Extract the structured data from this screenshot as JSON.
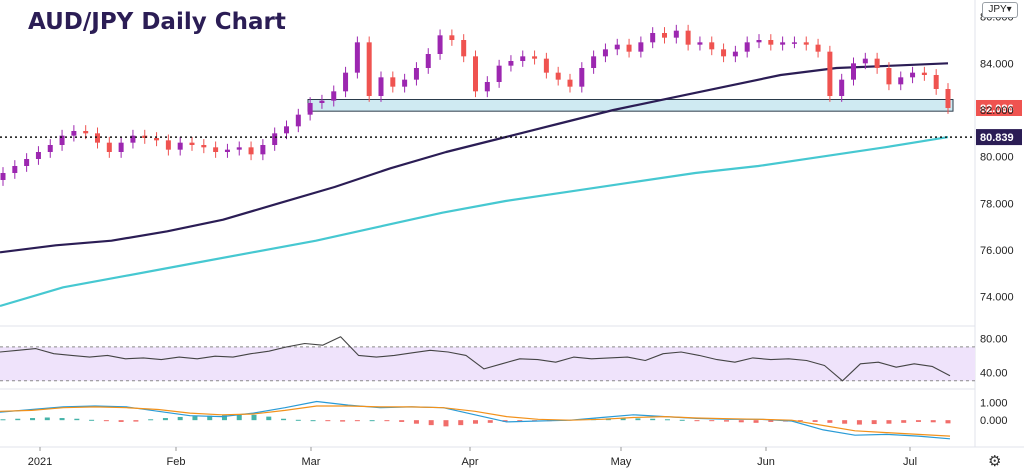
{
  "title": "AUD/JPY Daily Chart",
  "currency_selector": "JPY",
  "settings_icon": "gear-icon",
  "colors": {
    "up": "#9c27b0",
    "down": "#ef5350",
    "ma_long": "#2b1d55",
    "ma_200": "#46c8d1",
    "support_zone": "#bfe3ee",
    "rsi_band": "#efe3fb",
    "macd": "#2a9bd6",
    "signal": "#f2911b",
    "hist_up": "#26a69a",
    "hist_down": "#ef5350"
  },
  "chart_data": [
    {
      "type": "candlestick",
      "title": "AUD/JPY Daily Chart",
      "x_labels": [
        "2021",
        "Feb",
        "Mar",
        "Apr",
        "May",
        "Jun",
        "Jul"
      ],
      "ylim": [
        73,
        86.5
      ],
      "y_ticks": [
        "86.000",
        "84.000",
        "82.000",
        "80.000",
        "78.000",
        "76.000",
        "74.000"
      ],
      "y_tick_values": [
        86,
        84,
        82,
        80,
        78,
        76,
        74
      ],
      "price_labels": [
        {
          "text": "82.086",
          "value": 82.086
        },
        {
          "text": "80.839",
          "value": 80.839
        }
      ],
      "closes": [
        79.3,
        79.6,
        79.9,
        80.2,
        80.5,
        80.9,
        81.1,
        81.0,
        80.6,
        80.2,
        80.6,
        80.9,
        80.8,
        80.7,
        80.3,
        80.6,
        80.5,
        80.4,
        80.2,
        80.3,
        80.4,
        80.1,
        80.5,
        81.0,
        81.3,
        81.8,
        82.3,
        82.4,
        82.8,
        83.6,
        84.9,
        82.6,
        83.4,
        83.0,
        83.3,
        83.8,
        84.4,
        85.2,
        85.0,
        84.3,
        82.8,
        83.2,
        83.9,
        84.1,
        84.3,
        84.2,
        83.6,
        83.3,
        83.0,
        83.8,
        84.3,
        84.6,
        84.8,
        84.5,
        84.9,
        85.3,
        85.1,
        85.4,
        84.8,
        84.9,
        84.6,
        84.3,
        84.5,
        84.9,
        85.0,
        84.8,
        84.9,
        84.9,
        84.8,
        84.5,
        82.6,
        83.3,
        84.0,
        84.2,
        83.8,
        83.1,
        83.4,
        83.6,
        83.5,
        82.9,
        82.086
      ],
      "support_zone": [
        81.95,
        82.45
      ],
      "dotted_level": 80.839,
      "series": [
        {
          "name": "",
          "kind": "ma_long",
          "values": [
            75.9,
            76.2,
            76.4,
            76.8,
            77.3,
            78.0,
            78.7,
            79.5,
            80.2,
            80.8,
            81.4,
            82.0,
            82.5,
            83.0,
            83.5,
            83.8,
            83.9,
            84.0
          ]
        },
        {
          "name": "",
          "kind": "ma_200",
          "values": [
            73.6,
            74.4,
            74.9,
            75.4,
            75.9,
            76.4,
            77.0,
            77.6,
            78.1,
            78.5,
            78.9,
            79.3,
            79.6,
            80.0,
            80.4,
            80.839
          ]
        }
      ]
    },
    {
      "type": "line",
      "title": "",
      "ylim": [
        25,
        90
      ],
      "y_ticks": [
        "80.00",
        "40.00"
      ],
      "y_tick_values": [
        80,
        40
      ],
      "band": [
        70,
        30
      ],
      "values": [
        64,
        66,
        68,
        62,
        60,
        58,
        60,
        56,
        57,
        55,
        58,
        56,
        59,
        58,
        62,
        65,
        70,
        74,
        72,
        82,
        60,
        58,
        60,
        63,
        66,
        64,
        60,
        44,
        50,
        56,
        55,
        52,
        58,
        56,
        57,
        58,
        54,
        62,
        64,
        60,
        55,
        52,
        57,
        55,
        56,
        54,
        48,
        30,
        50,
        52,
        46,
        50,
        47,
        36
      ]
    },
    {
      "type": "line",
      "title": "",
      "ylim": [
        -1.4,
        1.7
      ],
      "y_ticks": [
        "1.000",
        "0.000"
      ],
      "y_tick_values": [
        1,
        0
      ],
      "series": [
        {
          "name": "",
          "kind": "macd",
          "values": [
            0.45,
            0.6,
            0.75,
            0.8,
            0.75,
            0.5,
            0.25,
            0.2,
            0.4,
            0.7,
            1.05,
            0.85,
            0.7,
            0.75,
            0.7,
            0.3,
            -0.1,
            -0.05,
            0.0,
            0.15,
            0.3,
            0.2,
            0.1,
            0.05,
            0.05,
            -0.05,
            -0.55,
            -0.85,
            -0.8,
            -0.9,
            -1.05
          ]
        },
        {
          "name": "",
          "kind": "signal",
          "values": [
            0.5,
            0.55,
            0.7,
            0.75,
            0.7,
            0.6,
            0.4,
            0.3,
            0.35,
            0.55,
            0.8,
            0.8,
            0.75,
            0.75,
            0.7,
            0.5,
            0.2,
            0.05,
            0.0,
            0.05,
            0.15,
            0.2,
            0.12,
            0.08,
            0.05,
            0.0,
            -0.3,
            -0.6,
            -0.7,
            -0.8,
            -0.9
          ]
        }
      ],
      "histogram": [
        0.05,
        0.08,
        0.12,
        0.15,
        0.12,
        0.08,
        0.02,
        -0.05,
        -0.1,
        -0.08,
        0.05,
        0.12,
        0.18,
        0.22,
        0.25,
        0.28,
        0.32,
        0.3,
        0.2,
        0.08,
        0.02,
        0.0,
        -0.05,
        -0.08,
        -0.05,
        0.0,
        -0.05,
        -0.1,
        -0.2,
        -0.28,
        -0.35,
        -0.28,
        -0.2,
        -0.15,
        -0.1,
        -0.08,
        -0.05,
        -0.02,
        0.02,
        0.05,
        0.08,
        0.1,
        0.12,
        0.1,
        0.08,
        0.05,
        0.02,
        -0.02,
        -0.05,
        -0.08,
        -0.12,
        -0.15,
        -0.1,
        -0.08,
        -0.05,
        -0.1,
        -0.15,
        -0.2,
        -0.25,
        -0.22,
        -0.2,
        -0.15,
        -0.1,
        -0.12,
        -0.18
      ]
    }
  ]
}
